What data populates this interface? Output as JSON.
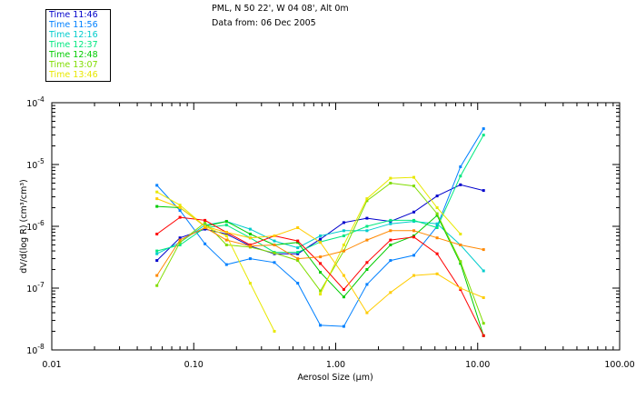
{
  "header": {
    "line1": "PML, N 50 22', W 04 08', Alt 0m",
    "line2": "Data from: 06 Dec 2005"
  },
  "chart_data": {
    "type": "line",
    "title": "",
    "xlabel": "Aerosol Size (μm)",
    "ylabel": "dV/d(log R) (cm³/cm³)",
    "xscale": "log",
    "yscale": "log",
    "xlim": [
      0.01,
      100
    ],
    "ylim": [
      1e-08,
      0.0001
    ],
    "grid": false,
    "legend_placement": "top-left-outside",
    "x_ticks": [
      {
        "value": 0.01,
        "label": "0.01"
      },
      {
        "value": 0.1,
        "label": "0.10"
      },
      {
        "value": 1,
        "label": "1.00"
      },
      {
        "value": 10,
        "label": "10.00"
      },
      {
        "value": 100,
        "label": "100.00"
      }
    ],
    "y_ticks": [
      {
        "value": 1e-08,
        "base": "10",
        "exp": "-8"
      },
      {
        "value": 1e-07,
        "base": "10",
        "exp": "-7"
      },
      {
        "value": 1e-06,
        "base": "10",
        "exp": "-6"
      },
      {
        "value": 1e-05,
        "base": "10",
        "exp": "-5"
      },
      {
        "value": 0.0001,
        "base": "10",
        "exp": "-4"
      }
    ],
    "x": [
      0.055,
      0.08,
      0.12,
      0.17,
      0.25,
      0.37,
      0.54,
      0.78,
      1.14,
      1.66,
      2.43,
      3.55,
      5.18,
      7.56,
      11.0
    ],
    "series": [
      {
        "name": "Time 11:46",
        "color": "#0000cc",
        "values": [
          2.8e-07,
          6.5e-07,
          9e-07,
          7.5e-07,
          4.8e-07,
          3.6e-07,
          3.6e-07,
          6.2e-07,
          1.15e-06,
          1.35e-06,
          1.2e-06,
          1.7e-06,
          3.1e-06,
          4.7e-06,
          3.8e-06
        ]
      },
      {
        "name": "Time 11:56",
        "color": "#0080ff",
        "values": [
          4.6e-06,
          1.8e-06,
          5.2e-07,
          2.4e-07,
          3e-07,
          2.6e-07,
          1.2e-07,
          2.5e-08,
          2.4e-08,
          1.15e-07,
          2.8e-07,
          3.4e-07,
          1e-06,
          9.2e-06,
          3.8e-05
        ]
      },
      {
        "name": "Time 12:16",
        "color": "#00cccc",
        "values": [
          3.6e-07,
          5.5e-07,
          1.05e-06,
          1.2e-06,
          9e-07,
          5.8e-07,
          4.5e-07,
          7e-07,
          8.5e-07,
          8.5e-07,
          1.1e-06,
          1.2e-06,
          1.1e-06,
          5e-07,
          1.9e-07
        ]
      },
      {
        "name": "Time 12:37",
        "color": "#00e880",
        "values": [
          4e-07,
          5e-07,
          9.5e-07,
          1.05e-06,
          6.5e-07,
          3.8e-07,
          3.8e-07,
          5.6e-07,
          7e-07,
          1e-06,
          1.25e-06,
          1.25e-06,
          9.5e-07,
          6.5e-06,
          3e-05
        ]
      },
      {
        "name": "Time 12:48",
        "color": "#00cc00",
        "values": [
          2.1e-06,
          2e-06,
          1e-06,
          1.2e-06,
          7.5e-07,
          5e-07,
          5.5e-07,
          1.8e-07,
          7.2e-08,
          2e-07,
          5e-07,
          7e-07,
          1.5e-06,
          2.5e-07,
          1.7e-08
        ]
      },
      {
        "name": "Time 13:07",
        "color": "#80dd00",
        "values": [
          1.1e-07,
          5.5e-07,
          1.15e-06,
          5e-07,
          4.6e-07,
          3.7e-07,
          2.8e-07,
          9e-08,
          4e-07,
          2.6e-06,
          5e-06,
          4.5e-06,
          1.6e-06,
          2.7e-07,
          2.7e-08
        ]
      },
      {
        "name": "Time 13:46",
        "color": "#e8e800",
        "values": [
          3.6e-06,
          2.2e-06,
          1e-06,
          7e-07,
          1.2e-07,
          2e-08,
          null,
          8e-08,
          5e-07,
          2.8e-06,
          6e-06,
          6.2e-06,
          2e-06,
          7.5e-07,
          null
        ]
      },
      {
        "name": "",
        "color": "#ff0000",
        "values": [
          7.5e-07,
          1.4e-06,
          1.25e-06,
          8e-07,
          5e-07,
          7e-07,
          5.8e-07,
          2.5e-07,
          9.5e-08,
          2.6e-07,
          6e-07,
          6.7e-07,
          3.6e-07,
          9.5e-08,
          1.7e-08
        ]
      },
      {
        "name": "",
        "color": "#ff8800",
        "values": [
          1.6e-07,
          6e-07,
          9.5e-07,
          6e-07,
          4.8e-07,
          5e-07,
          3e-07,
          3.2e-07,
          4e-07,
          6e-07,
          8.5e-07,
          8.5e-07,
          6.5e-07,
          5e-07,
          4.2e-07
        ]
      },
      {
        "name": "",
        "color": "#ffcc00",
        "values": [
          2.8e-06,
          2e-06,
          1e-06,
          8e-07,
          6.5e-07,
          7e-07,
          9.5e-07,
          5.5e-07,
          1.6e-07,
          4e-08,
          8.5e-08,
          1.6e-07,
          1.7e-07,
          1e-07,
          7e-08
        ]
      }
    ]
  }
}
